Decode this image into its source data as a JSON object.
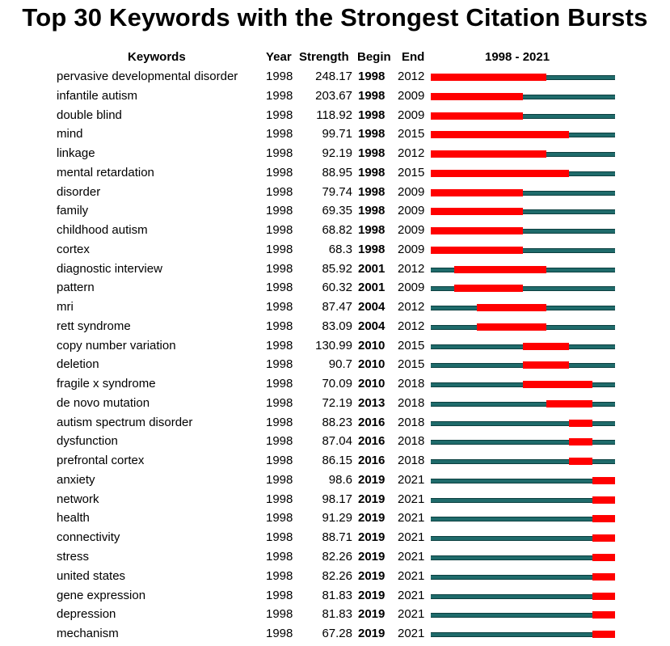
{
  "header": {
    "title": "Top 30 Keywords with the Strongest Citation Bursts",
    "col_keywords": "Keywords",
    "col_year": "Year",
    "col_strength": "Strength",
    "col_begin": "Begin",
    "col_end": "End",
    "col_range": "1998 - 2021"
  },
  "colors": {
    "baseline": "#1f6b6b",
    "burst": "#ff0000"
  },
  "chart_data": {
    "type": "table",
    "title": "Top 30 Keywords with the Strongest Citation Bursts",
    "timeline": [
      1998,
      2021
    ],
    "columns": [
      "Keywords",
      "Year",
      "Strength",
      "Begin",
      "End",
      "1998 - 2021"
    ],
    "rows": [
      {
        "keyword": "pervasive developmental disorder",
        "year": "1998",
        "strength": "248.17",
        "begin": "1998",
        "end": "2012"
      },
      {
        "keyword": "infantile autism",
        "year": "1998",
        "strength": "203.67",
        "begin": "1998",
        "end": "2009"
      },
      {
        "keyword": "double blind",
        "year": "1998",
        "strength": "118.92",
        "begin": "1998",
        "end": "2009"
      },
      {
        "keyword": "mind",
        "year": "1998",
        "strength": "99.71",
        "begin": "1998",
        "end": "2015"
      },
      {
        "keyword": "linkage",
        "year": "1998",
        "strength": "92.19",
        "begin": "1998",
        "end": "2012"
      },
      {
        "keyword": "mental retardation",
        "year": "1998",
        "strength": "88.95",
        "begin": "1998",
        "end": "2015"
      },
      {
        "keyword": "disorder",
        "year": "1998",
        "strength": "79.74",
        "begin": "1998",
        "end": "2009"
      },
      {
        "keyword": "family",
        "year": "1998",
        "strength": "69.35",
        "begin": "1998",
        "end": "2009"
      },
      {
        "keyword": "childhood autism",
        "year": "1998",
        "strength": "68.82",
        "begin": "1998",
        "end": "2009"
      },
      {
        "keyword": "cortex",
        "year": "1998",
        "strength": "68.3",
        "begin": "1998",
        "end": "2009"
      },
      {
        "keyword": "diagnostic interview",
        "year": "1998",
        "strength": "85.92",
        "begin": "2001",
        "end": "2012"
      },
      {
        "keyword": "pattern",
        "year": "1998",
        "strength": "60.32",
        "begin": "2001",
        "end": "2009"
      },
      {
        "keyword": "mri",
        "year": "1998",
        "strength": "87.47",
        "begin": "2004",
        "end": "2012"
      },
      {
        "keyword": "rett syndrome",
        "year": "1998",
        "strength": "83.09",
        "begin": "2004",
        "end": "2012"
      },
      {
        "keyword": "copy number variation",
        "year": "1998",
        "strength": "130.99",
        "begin": "2010",
        "end": "2015"
      },
      {
        "keyword": "deletion",
        "year": "1998",
        "strength": "90.7",
        "begin": "2010",
        "end": "2015"
      },
      {
        "keyword": "fragile x syndrome",
        "year": "1998",
        "strength": "70.09",
        "begin": "2010",
        "end": "2018"
      },
      {
        "keyword": "de novo mutation",
        "year": "1998",
        "strength": "72.19",
        "begin": "2013",
        "end": "2018"
      },
      {
        "keyword": "autism spectrum disorder",
        "year": "1998",
        "strength": "88.23",
        "begin": "2016",
        "end": "2018"
      },
      {
        "keyword": "dysfunction",
        "year": "1998",
        "strength": "87.04",
        "begin": "2016",
        "end": "2018"
      },
      {
        "keyword": "prefrontal cortex",
        "year": "1998",
        "strength": "86.15",
        "begin": "2016",
        "end": "2018"
      },
      {
        "keyword": "anxiety",
        "year": "1998",
        "strength": "98.6",
        "begin": "2019",
        "end": "2021"
      },
      {
        "keyword": "network",
        "year": "1998",
        "strength": "98.17",
        "begin": "2019",
        "end": "2021"
      },
      {
        "keyword": "health",
        "year": "1998",
        "strength": "91.29",
        "begin": "2019",
        "end": "2021"
      },
      {
        "keyword": "connectivity",
        "year": "1998",
        "strength": "88.71",
        "begin": "2019",
        "end": "2021"
      },
      {
        "keyword": "stress",
        "year": "1998",
        "strength": "82.26",
        "begin": "2019",
        "end": "2021"
      },
      {
        "keyword": "united states",
        "year": "1998",
        "strength": "82.26",
        "begin": "2019",
        "end": "2021"
      },
      {
        "keyword": "gene expression",
        "year": "1998",
        "strength": "81.83",
        "begin": "2019",
        "end": "2021"
      },
      {
        "keyword": "depression",
        "year": "1998",
        "strength": "81.83",
        "begin": "2019",
        "end": "2021"
      },
      {
        "keyword": "mechanism",
        "year": "1998",
        "strength": "67.28",
        "begin": "2019",
        "end": "2021"
      }
    ]
  }
}
